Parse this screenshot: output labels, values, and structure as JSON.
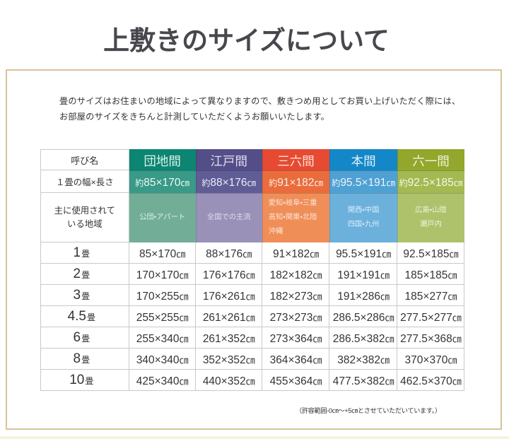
{
  "page": {
    "title": "上敷きのサイズについて",
    "intro": {
      "line1": "畳のサイズはお住まいの地域によって異なりますので、敷きつめ用としてお買い上げいただく際には、",
      "line2": "お部屋のサイズをきちんと計測していただくようお願いいたします。"
    },
    "footnote": "（許容範囲-0㎝～+5㎝とさせていただいています。）"
  },
  "table": {
    "corner_label": "呼び名",
    "width_row_label": "１畳の幅×長さ",
    "region_row_label_line1": "主に使用されて",
    "region_row_label_line2": "いる地域",
    "approx_prefix": "約",
    "unit": "㎝",
    "tatami_unit": "畳",
    "columns": [
      {
        "name": "団地間",
        "width_value": "85×170",
        "regions": [
          "公団・アパート"
        ]
      },
      {
        "name": "江戸間",
        "width_value": "88×176",
        "regions": [
          "全国での主流"
        ]
      },
      {
        "name": "三六間",
        "width_value": "91×182",
        "regions": [
          "愛知・岐阜・三重",
          "高知・関東・北陸",
          "沖縄"
        ]
      },
      {
        "name": "本間",
        "width_value": "95.5×191",
        "regions": [
          "関西・中国",
          "四国・九州"
        ]
      },
      {
        "name": "六一間",
        "width_value": "92.5×185",
        "regions": [
          "広島・山陰",
          "瀬戸内"
        ]
      }
    ],
    "size_rows": [
      {
        "label": "1",
        "values": [
          "85×170",
          "88×176",
          "91×182",
          "95.5×191",
          "92.5×185"
        ]
      },
      {
        "label": "2",
        "values": [
          "170×170",
          "176×176",
          "182×182",
          "191×191",
          "185×185"
        ]
      },
      {
        "label": "3",
        "values": [
          "170×255",
          "176×261",
          "182×273",
          "191×286",
          "185×277"
        ]
      },
      {
        "label": "4.5",
        "values": [
          "255×255",
          "261×261",
          "273×273",
          "286.5×286",
          "277.5×277"
        ]
      },
      {
        "label": "6",
        "values": [
          "255×340",
          "261×352",
          "273×364",
          "286.5×382",
          "277.5×368"
        ]
      },
      {
        "label": "8",
        "values": [
          "340×340",
          "352×352",
          "364×364",
          "382×382",
          "370×370"
        ]
      },
      {
        "label": "10",
        "values": [
          "425×340",
          "440×352",
          "455×364",
          "477.5×382",
          "462.5×370"
        ]
      }
    ]
  },
  "colors": {
    "frame_border": "#d9c499",
    "title_text": "#47474d",
    "body_text": "#333333",
    "grid_line": "#c9c9c9",
    "bottom_band": "#f8f2e3",
    "columns": [
      {
        "header": "#0c8573",
        "width": "#389a87",
        "region": "#72ae97",
        "pale_text": "#dff0e9",
        "bright_text": "#eef8f3"
      },
      {
        "header": "#544e88",
        "width": "#5f5c96",
        "region": "#9a91b8",
        "pale_text": "#e0dcef",
        "bright_text": "#edeaf7"
      },
      {
        "header": "#e74a33",
        "width": "#ea6c3d",
        "region": "#f08e58",
        "pale_text": "#fbe3d6",
        "bright_text": "#fdeee3"
      },
      {
        "header": "#1487c8",
        "width": "#4fa0d3",
        "region": "#6cb0dc",
        "pale_text": "#ddeef9",
        "bright_text": "#ebf5fc"
      },
      {
        "header": "#93a72c",
        "width": "#a4b952",
        "region": "#aec26c",
        "pale_text": "#eff3d8",
        "bright_text": "#f5f8e6"
      }
    ]
  }
}
